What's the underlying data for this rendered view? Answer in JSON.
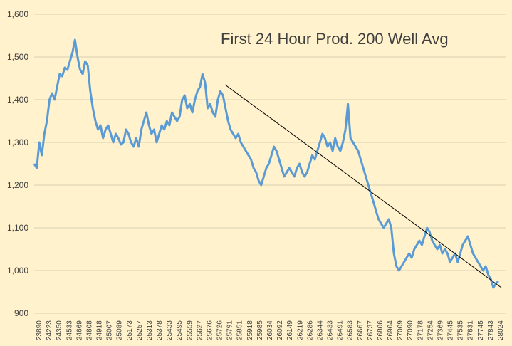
{
  "chart_data": {
    "type": "line",
    "title": "First 24 Hour Prod. 200 Well Avg",
    "xlabel": "",
    "ylabel": "",
    "ylim": [
      900,
      1600
    ],
    "yticks": [
      900,
      1000,
      1100,
      1200,
      1300,
      1400,
      1500,
      1600
    ],
    "ytick_labels": [
      "900",
      "1,000",
      "1,100",
      "1,200",
      "1,300",
      "1,400",
      "1,500",
      "1,600"
    ],
    "grid": true,
    "x_tick_labels": [
      "23890",
      "24223",
      "24350",
      "24533",
      "24669",
      "24808",
      "24918",
      "25007",
      "25089",
      "25173",
      "25257",
      "25313",
      "25378",
      "25433",
      "25495",
      "25559",
      "25627",
      "25676",
      "25726",
      "25791",
      "25851",
      "25918",
      "25985",
      "26034",
      "26092",
      "26149",
      "26219",
      "26286",
      "26344",
      "26433",
      "26491",
      "26583",
      "26667",
      "26737",
      "26806",
      "26904",
      "27009",
      "27090",
      "27178",
      "27254",
      "27369",
      "27445",
      "27535",
      "27631",
      "27745",
      "27843",
      "28024"
    ],
    "series": [
      {
        "color": "#5b9bd5",
        "values": [
          1250,
          1240,
          1300,
          1270,
          1320,
          1350,
          1400,
          1415,
          1400,
          1430,
          1460,
          1455,
          1475,
          1470,
          1490,
          1510,
          1540,
          1500,
          1470,
          1460,
          1490,
          1480,
          1420,
          1380,
          1350,
          1330,
          1340,
          1310,
          1330,
          1340,
          1320,
          1300,
          1320,
          1310,
          1295,
          1300,
          1330,
          1320,
          1300,
          1290,
          1310,
          1290,
          1330,
          1350,
          1370,
          1340,
          1320,
          1330,
          1300,
          1320,
          1340,
          1330,
          1350,
          1340,
          1370,
          1360,
          1350,
          1360,
          1400,
          1410,
          1380,
          1390,
          1370,
          1400,
          1420,
          1430,
          1460,
          1440,
          1380,
          1390,
          1370,
          1360,
          1400,
          1420,
          1410,
          1380,
          1350,
          1330,
          1320,
          1310,
          1320,
          1300,
          1290,
          1280,
          1270,
          1260,
          1240,
          1230,
          1210,
          1200,
          1220,
          1240,
          1250,
          1270,
          1290,
          1280,
          1260,
          1240,
          1220,
          1230,
          1240,
          1230,
          1220,
          1240,
          1250,
          1230,
          1220,
          1230,
          1250,
          1270,
          1260,
          1280,
          1300,
          1320,
          1310,
          1290,
          1300,
          1280,
          1310,
          1290,
          1280,
          1300,
          1330,
          1390,
          1310,
          1300,
          1290,
          1280,
          1260,
          1240,
          1220,
          1200,
          1180,
          1160,
          1140,
          1120,
          1110,
          1100,
          1110,
          1120,
          1100,
          1040,
          1010,
          1000,
          1010,
          1020,
          1030,
          1040,
          1030,
          1050,
          1060,
          1070,
          1060,
          1080,
          1100,
          1090,
          1070,
          1060,
          1050,
          1060,
          1040,
          1050,
          1040,
          1020,
          1030,
          1040,
          1020,
          1040,
          1060,
          1070,
          1080,
          1060,
          1040,
          1030,
          1020,
          1010,
          1000,
          1010,
          990,
          980,
          960,
          970,
          975
        ]
      },
      {
        "color": "#000000",
        "values_at": [
          [
            0.405,
            1435
          ],
          [
            1.0,
            960
          ]
        ]
      }
    ]
  }
}
